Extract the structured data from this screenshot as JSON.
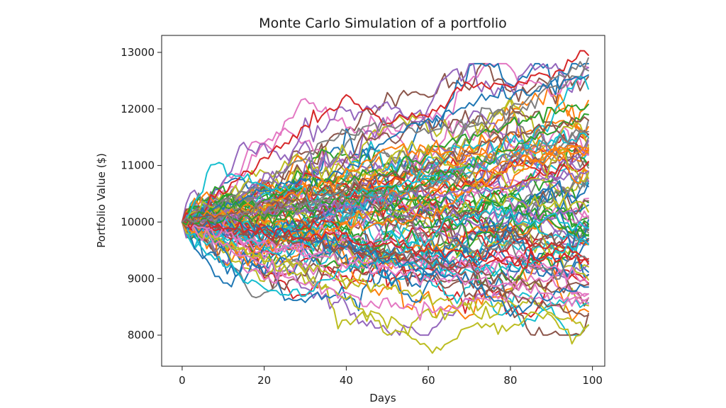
{
  "chart_data": {
    "type": "line",
    "title": "Monte Carlo Simulation of a portfolio",
    "xlabel": "Days",
    "ylabel": "Portfolio Value ($)",
    "xlim": [
      -5,
      103
    ],
    "ylim": [
      7450,
      13300
    ],
    "xticks": [
      0,
      20,
      40,
      60,
      80,
      100
    ],
    "yticks": [
      8000,
      9000,
      10000,
      11000,
      12000,
      13000
    ],
    "grid": false,
    "legend": "none",
    "x_start": 0,
    "x_end": 99,
    "initial_value": 10000,
    "num_simulations": 100,
    "color_cycle": [
      "#1f77b4",
      "#ff7f0e",
      "#2ca02c",
      "#d62728",
      "#9467bd",
      "#8c564b",
      "#e377c2",
      "#7f7f7f",
      "#bcbd22",
      "#17becf"
    ],
    "series": [
      {
        "color": "#d62728",
        "anchors": [
          [
            0,
            10000
          ],
          [
            15,
            10800
          ],
          [
            30,
            11700
          ],
          [
            40,
            12180
          ],
          [
            50,
            11750
          ],
          [
            60,
            11900
          ],
          [
            70,
            12400
          ],
          [
            80,
            12400
          ],
          [
            90,
            12650
          ],
          [
            97,
            12980
          ],
          [
            99,
            12950
          ]
        ]
      },
      {
        "color": "#7f7f7f",
        "anchors": [
          [
            0,
            10000
          ],
          [
            20,
            10700
          ],
          [
            35,
            11400
          ],
          [
            50,
            11750
          ],
          [
            60,
            11600
          ],
          [
            70,
            11700
          ],
          [
            80,
            12000
          ],
          [
            90,
            12500
          ],
          [
            99,
            12900
          ]
        ]
      },
      {
        "color": "#1f77b4",
        "anchors": [
          [
            0,
            10000
          ],
          [
            20,
            10500
          ],
          [
            40,
            10900
          ],
          [
            55,
            11700
          ],
          [
            65,
            11900
          ],
          [
            75,
            12200
          ],
          [
            85,
            12350
          ],
          [
            95,
            12450
          ],
          [
            99,
            12600
          ]
        ]
      },
      {
        "color": "#2ca02c",
        "anchors": [
          [
            0,
            10000
          ],
          [
            30,
            10600
          ],
          [
            50,
            10900
          ],
          [
            70,
            11500
          ],
          [
            90,
            11950
          ],
          [
            99,
            12080
          ]
        ]
      },
      {
        "color": "#17becf",
        "anchors": [
          [
            0,
            10000
          ],
          [
            5,
            10600
          ],
          [
            7,
            11050
          ],
          [
            12,
            10850
          ],
          [
            20,
            10600
          ],
          [
            35,
            10500
          ],
          [
            50,
            10600
          ],
          [
            70,
            11000
          ],
          [
            90,
            11400
          ],
          [
            99,
            11500
          ]
        ]
      },
      {
        "color": "#ff7f0e",
        "anchors": [
          [
            0,
            10000
          ],
          [
            10,
            9650
          ],
          [
            15,
            9400
          ],
          [
            25,
            9700
          ],
          [
            40,
            9900
          ],
          [
            60,
            10100
          ],
          [
            80,
            11000
          ],
          [
            99,
            11300
          ]
        ]
      },
      {
        "color": "#bcbd22",
        "anchors": [
          [
            0,
            10000
          ],
          [
            10,
            9600
          ],
          [
            20,
            9400
          ],
          [
            30,
            9000
          ],
          [
            40,
            8700
          ],
          [
            50,
            8050
          ],
          [
            55,
            8000
          ],
          [
            60,
            7720
          ],
          [
            65,
            7820
          ],
          [
            70,
            8200
          ],
          [
            80,
            8100
          ],
          [
            85,
            8400
          ],
          [
            90,
            8300
          ],
          [
            95,
            7950
          ],
          [
            99,
            8180
          ]
        ]
      },
      {
        "color": "#bcbd22",
        "anchors": [
          [
            0,
            10000
          ],
          [
            20,
            9300
          ],
          [
            30,
            9200
          ],
          [
            45,
            8900
          ],
          [
            60,
            8700
          ],
          [
            75,
            8500
          ],
          [
            85,
            8600
          ],
          [
            90,
            8400
          ],
          [
            95,
            8200
          ],
          [
            99,
            8180
          ]
        ]
      },
      {
        "color": "#e377c2",
        "anchors": [
          [
            0,
            10000
          ],
          [
            15,
            9400
          ],
          [
            30,
            8900
          ],
          [
            45,
            8600
          ],
          [
            60,
            8450
          ],
          [
            70,
            8600
          ],
          [
            80,
            8700
          ],
          [
            90,
            8600
          ],
          [
            99,
            8650
          ]
        ]
      },
      {
        "color": "#17becf",
        "anchors": [
          [
            0,
            10000
          ],
          [
            5,
            9500
          ],
          [
            15,
            9050
          ],
          [
            20,
            8800
          ],
          [
            25,
            8750
          ],
          [
            30,
            8680
          ],
          [
            35,
            9000
          ],
          [
            45,
            9400
          ],
          [
            60,
            9200
          ],
          [
            75,
            9100
          ],
          [
            90,
            9400
          ],
          [
            99,
            9600
          ]
        ]
      },
      {
        "color": "#8c564b",
        "anchors": [
          [
            0,
            10000
          ],
          [
            20,
            9800
          ],
          [
            40,
            9500
          ],
          [
            60,
            9300
          ],
          [
            70,
            9000
          ],
          [
            80,
            8700
          ],
          [
            90,
            8500
          ],
          [
            99,
            8350
          ]
        ]
      },
      {
        "color": "#8c564b",
        "anchors": [
          [
            0,
            10000
          ],
          [
            30,
            9700
          ],
          [
            50,
            9400
          ],
          [
            65,
            9300
          ],
          [
            80,
            8950
          ],
          [
            90,
            8800
          ],
          [
            99,
            8900
          ]
        ]
      },
      {
        "color": "#1f77b4",
        "anchors": [
          [
            0,
            10000
          ],
          [
            20,
            9900
          ],
          [
            40,
            9600
          ],
          [
            55,
            9200
          ],
          [
            70,
            9000
          ],
          [
            80,
            8400
          ],
          [
            90,
            8700
          ],
          [
            99,
            8850
          ]
        ]
      },
      {
        "color": "#e377c2",
        "anchors": [
          [
            0,
            10000
          ],
          [
            20,
            9600
          ],
          [
            40,
            9300
          ],
          [
            60,
            9000
          ],
          [
            80,
            8900
          ],
          [
            99,
            8550
          ]
        ]
      },
      {
        "color": "#d62728",
        "anchors": [
          [
            0,
            10000
          ],
          [
            20,
            9800
          ],
          [
            40,
            9700
          ],
          [
            60,
            9500
          ],
          [
            80,
            9300
          ],
          [
            99,
            9350
          ]
        ]
      },
      {
        "color": "#9467bd",
        "anchors": [
          [
            0,
            10000
          ],
          [
            20,
            10200
          ],
          [
            40,
            10300
          ],
          [
            60,
            10500
          ],
          [
            80,
            10600
          ],
          [
            99,
            10900
          ]
        ]
      },
      {
        "color": "#ff7f0e",
        "anchors": [
          [
            0,
            10000
          ],
          [
            20,
            10300
          ],
          [
            40,
            10800
          ],
          [
            50,
            11300
          ],
          [
            60,
            11250
          ],
          [
            80,
            11200
          ],
          [
            99,
            11300
          ]
        ]
      },
      {
        "color": "#2ca02c",
        "anchors": [
          [
            0,
            10000
          ],
          [
            20,
            10100
          ],
          [
            40,
            10400
          ],
          [
            60,
            10700
          ],
          [
            80,
            11300
          ],
          [
            99,
            11900
          ]
        ]
      },
      {
        "color": "#8c564b",
        "anchors": [
          [
            0,
            10000
          ],
          [
            20,
            10250
          ],
          [
            40,
            10600
          ],
          [
            60,
            11000
          ],
          [
            80,
            11500
          ],
          [
            99,
            11800
          ]
        ]
      },
      {
        "color": "#7f7f7f",
        "anchors": [
          [
            0,
            10000
          ],
          [
            30,
            10300
          ],
          [
            60,
            10600
          ],
          [
            80,
            11200
          ],
          [
            99,
            11600
          ]
        ]
      }
    ]
  }
}
